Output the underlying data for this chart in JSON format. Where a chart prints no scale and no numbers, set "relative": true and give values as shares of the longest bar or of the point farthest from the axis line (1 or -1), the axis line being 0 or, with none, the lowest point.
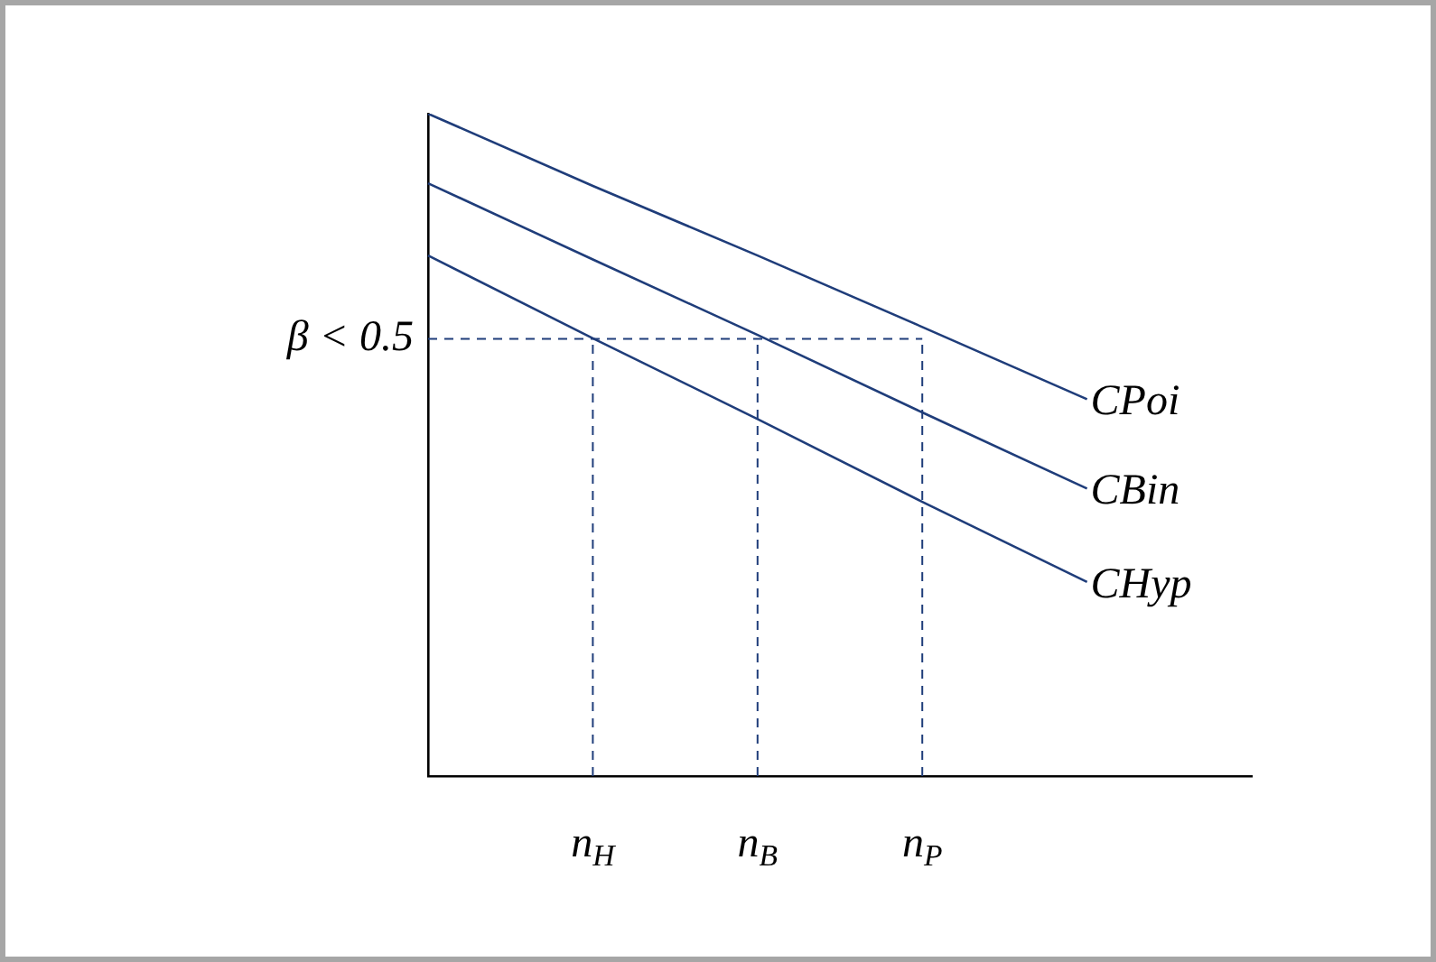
{
  "chart_data": {
    "type": "line",
    "relative": true,
    "legend": false,
    "grid": false,
    "marker": "none",
    "categories": [
      null,
      "n$_{H}$",
      "n$_{B}$",
      "n$_{P}$",
      null,
      null
    ],
    "series": [
      {
        "name": "CPoi",
        "color": "#1f3d7a",
        "values": [
          1,
          0.891,
          0.786,
          0.678,
          0.569,
          null
        ]
      },
      {
        "name": "CBin",
        "color": "#1f3d7a",
        "values": [
          0.895,
          0.78,
          0.666,
          0.549,
          0.434,
          null
        ]
      },
      {
        "name": "CHyp",
        "color": "#1f3d7a",
        "values": [
          0.786,
          0.661,
          0.539,
          0.414,
          0.293,
          null
        ]
      },
      {
        "color": "#1f3d7a",
        "line_style": "dashed",
        "values": [
          0.66,
          0.66,
          0.66,
          0.66,
          null,
          null
        ]
      }
    ],
    "annotations": [
      "β < 0.5"
    ],
    "ref_lines": [
      {
        "axis": "x",
        "value": "n$_{H}$",
        "color": "#1f3d7a",
        "line_style": "dashed"
      },
      {
        "axis": "x",
        "value": "n$_{B}$",
        "color": "#1f3d7a",
        "line_style": "dashed"
      },
      {
        "axis": "x",
        "value": "n$_{P}$",
        "color": "#1f3d7a",
        "line_style": "dashed"
      }
    ]
  }
}
